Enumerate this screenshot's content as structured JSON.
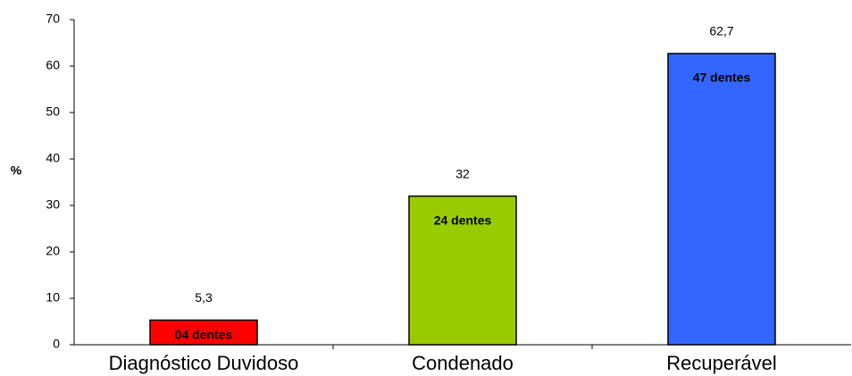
{
  "chart_data": {
    "type": "bar",
    "y_label": "%",
    "categories": [
      "Diagnóstico Duvidoso",
      "Condenado",
      "Recuperável"
    ],
    "values": [
      5.3,
      32,
      62.7
    ],
    "value_labels": [
      "5,3",
      "32",
      "62,7"
    ],
    "bar_labels": [
      "04 dentes",
      "24 dentes",
      "47 dentes"
    ],
    "colors": [
      "#ff0000",
      "#99cc00",
      "#3366ff"
    ],
    "ylim": [
      0,
      70
    ],
    "yticks": [
      0,
      10,
      20,
      30,
      40,
      50,
      60,
      70
    ],
    "grid": false
  }
}
